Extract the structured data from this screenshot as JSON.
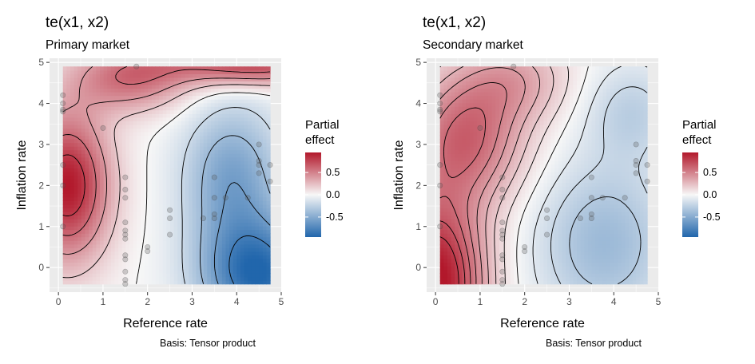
{
  "panels": [
    {
      "title": "te(x1, x2)",
      "subtitle": "Primary market",
      "caption": "Basis: Tensor product",
      "chart_data": {
        "type": "heatmap",
        "xlabel": "Reference rate",
        "ylabel": "Inflation rate",
        "xlim": [
          -0.2,
          5.0
        ],
        "ylim": [
          -0.6,
          5.1
        ],
        "x_ticks": [
          0,
          1,
          2,
          3,
          4,
          5
        ],
        "y_ticks": [
          0,
          1,
          2,
          3,
          4,
          5
        ],
        "x_range": [
          0.1,
          4.75
        ],
        "y_range": [
          -0.4,
          4.9
        ],
        "legend": {
          "title": "Partial effect",
          "breaks": [
            0.5,
            0.0,
            -0.5
          ],
          "labels": [
            "0.5",
            "0.0",
            "-0.5"
          ],
          "limits": [
            -0.95,
            0.95
          ],
          "colors": {
            "low": "#2166ac",
            "mid": "#f7f7f7",
            "high": "#b2182b"
          },
          "position": "right"
        },
        "surface": "primary",
        "contour_levels": [
          -0.8,
          -0.6,
          -0.4,
          -0.2,
          0.0,
          0.2,
          0.4,
          0.6,
          0.8
        ],
        "points": [
          [
            0.1,
            4.2
          ],
          [
            0.1,
            4.0
          ],
          [
            0.1,
            3.8
          ],
          [
            0.1,
            3.85
          ],
          [
            0.1,
            2.5
          ],
          [
            0.1,
            2.0
          ],
          [
            0.1,
            1.0
          ],
          [
            1.0,
            3.4
          ],
          [
            1.5,
            2.2
          ],
          [
            1.5,
            1.9
          ],
          [
            1.5,
            1.7
          ],
          [
            1.5,
            1.1
          ],
          [
            1.5,
            0.9
          ],
          [
            1.5,
            0.8
          ],
          [
            1.5,
            0.7
          ],
          [
            1.5,
            0.3
          ],
          [
            1.5,
            0.2
          ],
          [
            1.5,
            -0.1
          ],
          [
            1.5,
            -0.3
          ],
          [
            1.5,
            -0.4
          ],
          [
            1.75,
            4.9
          ],
          [
            2.0,
            0.5
          ],
          [
            2.0,
            0.4
          ],
          [
            2.5,
            1.4
          ],
          [
            2.5,
            1.2
          ],
          [
            2.5,
            0.8
          ],
          [
            3.25,
            1.2
          ],
          [
            3.5,
            2.2
          ],
          [
            3.5,
            1.7
          ],
          [
            3.5,
            1.3
          ],
          [
            3.5,
            1.2
          ],
          [
            3.75,
            1.7
          ],
          [
            4.25,
            1.7
          ],
          [
            4.5,
            3.0
          ],
          [
            4.5,
            2.6
          ],
          [
            4.5,
            2.5
          ],
          [
            4.5,
            2.3
          ],
          [
            4.75,
            2.5
          ],
          [
            4.75,
            2.1
          ]
        ]
      }
    },
    {
      "title": "te(x1, x2)",
      "subtitle": "Secondary market",
      "caption": "Basis: Tensor product",
      "chart_data": {
        "type": "heatmap",
        "xlabel": "Reference rate",
        "ylabel": "Inflation rate",
        "xlim": [
          -0.2,
          5.0
        ],
        "ylim": [
          -0.6,
          5.1
        ],
        "x_ticks": [
          0,
          1,
          2,
          3,
          4,
          5
        ],
        "y_ticks": [
          0,
          1,
          2,
          3,
          4,
          5
        ],
        "x_range": [
          0.1,
          4.75
        ],
        "y_range": [
          -0.4,
          4.9
        ],
        "legend": {
          "title": "Partial effect",
          "breaks": [
            0.5,
            0.0,
            -0.5
          ],
          "labels": [
            "0.5",
            "0.0",
            "-0.5"
          ],
          "limits": [
            -0.95,
            0.95
          ],
          "colors": {
            "low": "#2166ac",
            "mid": "#f7f7f7",
            "high": "#b2182b"
          },
          "position": "right"
        },
        "surface": "secondary",
        "contour_levels": [
          -0.4,
          -0.3,
          -0.2,
          -0.1,
          0.0,
          0.1,
          0.2,
          0.3,
          0.4,
          0.5,
          0.6,
          0.7,
          0.8
        ],
        "points": [
          [
            0.1,
            4.2
          ],
          [
            0.1,
            4.0
          ],
          [
            0.1,
            3.8
          ],
          [
            0.1,
            3.85
          ],
          [
            0.1,
            2.5
          ],
          [
            0.1,
            2.0
          ],
          [
            0.1,
            1.0
          ],
          [
            1.0,
            3.4
          ],
          [
            1.5,
            2.2
          ],
          [
            1.5,
            1.9
          ],
          [
            1.5,
            1.7
          ],
          [
            1.5,
            1.1
          ],
          [
            1.5,
            0.9
          ],
          [
            1.5,
            0.8
          ],
          [
            1.5,
            0.7
          ],
          [
            1.5,
            0.3
          ],
          [
            1.5,
            0.2
          ],
          [
            1.5,
            -0.1
          ],
          [
            1.5,
            -0.3
          ],
          [
            1.5,
            -0.4
          ],
          [
            1.75,
            4.9
          ],
          [
            2.0,
            0.5
          ],
          [
            2.0,
            0.4
          ],
          [
            2.5,
            1.4
          ],
          [
            2.5,
            1.2
          ],
          [
            2.5,
            0.8
          ],
          [
            3.25,
            1.2
          ],
          [
            3.5,
            2.2
          ],
          [
            3.5,
            1.7
          ],
          [
            3.5,
            1.3
          ],
          [
            3.5,
            1.2
          ],
          [
            3.75,
            1.7
          ],
          [
            4.25,
            1.7
          ],
          [
            4.5,
            3.0
          ],
          [
            4.5,
            2.6
          ],
          [
            4.5,
            2.5
          ],
          [
            4.5,
            2.3
          ],
          [
            4.75,
            2.5
          ],
          [
            4.75,
            2.1
          ]
        ]
      }
    }
  ]
}
